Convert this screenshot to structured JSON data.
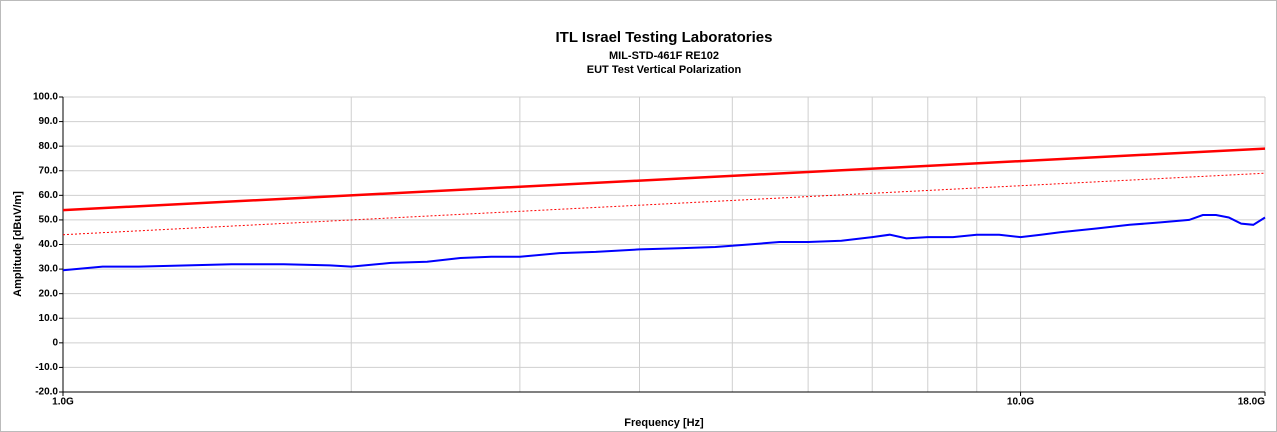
{
  "chart_data": {
    "type": "line",
    "title": "ITL Israel Testing Laboratories",
    "subtitle": [
      "MIL-STD-461F   RE102",
      "EUT Test Vertical Polarization"
    ],
    "xlabel": "Frequency [Hz]",
    "ylabel": "Amplitude [dBuV/m]",
    "xscale": "log",
    "xlim": [
      1000000000,
      18000000000
    ],
    "xticks": [
      {
        "value": 1000000000,
        "label": "1.0G"
      },
      {
        "value": 10000000000,
        "label": "10.0G"
      },
      {
        "value": 18000000000,
        "label": "18.0G"
      }
    ],
    "xgrid": [
      2000000000,
      3000000000,
      4000000000,
      5000000000,
      6000000000,
      7000000000,
      8000000000,
      9000000000
    ],
    "ylim": [
      -20,
      100
    ],
    "yticks": [
      {
        "value": -20,
        "label": "-20.0"
      },
      {
        "value": -10,
        "label": "-10.0"
      },
      {
        "value": 0,
        "label": "0"
      },
      {
        "value": 10,
        "label": "10.0"
      },
      {
        "value": 20,
        "label": "20.0"
      },
      {
        "value": 30,
        "label": "30.0"
      },
      {
        "value": 40,
        "label": "40.0"
      },
      {
        "value": 50,
        "label": "50.0"
      },
      {
        "value": 60,
        "label": "60.0"
      },
      {
        "value": 70,
        "label": "70.0"
      },
      {
        "value": 80,
        "label": "80.0"
      },
      {
        "value": 90,
        "label": "90.0"
      },
      {
        "value": 100,
        "label": "100.0"
      }
    ],
    "grid": true,
    "series": [
      {
        "color": "#ff0000",
        "style": "solid",
        "width": 2.5,
        "x": [
          1000000000,
          18000000000
        ],
        "values": [
          54,
          79
        ]
      },
      {
        "color": "#ff0000",
        "style": "dotted",
        "width": 1,
        "x": [
          1000000000,
          18000000000
        ],
        "values": [
          44,
          69
        ]
      },
      {
        "color": "#0000ff",
        "style": "solid",
        "width": 2,
        "x": [
          1000000000,
          1100000000,
          1200000000,
          1350000000,
          1500000000,
          1700000000,
          1900000000,
          2000000000,
          2200000000,
          2400000000,
          2600000000,
          2800000000,
          3000000000,
          3300000000,
          3600000000,
          4000000000,
          4400000000,
          4800000000,
          5200000000,
          5600000000,
          6000000000,
          6500000000,
          7000000000,
          7300000000,
          7600000000,
          8000000000,
          8500000000,
          9000000000,
          9500000000,
          10000000000,
          10500000000,
          11000000000,
          12000000000,
          13000000000,
          14000000000,
          15000000000,
          15500000000,
          16000000000,
          16500000000,
          17000000000,
          17500000000,
          18000000000
        ],
        "values": [
          29.5,
          31,
          31,
          31.5,
          32,
          32,
          31.5,
          31,
          32.5,
          33,
          34.5,
          35,
          35,
          36.5,
          37,
          38,
          38.5,
          39,
          40,
          41,
          41,
          41.5,
          43,
          44,
          42.5,
          43,
          43,
          44,
          44,
          43,
          44,
          45,
          46.5,
          48,
          49,
          50,
          52,
          52,
          51,
          48.5,
          48,
          51
        ]
      }
    ]
  }
}
